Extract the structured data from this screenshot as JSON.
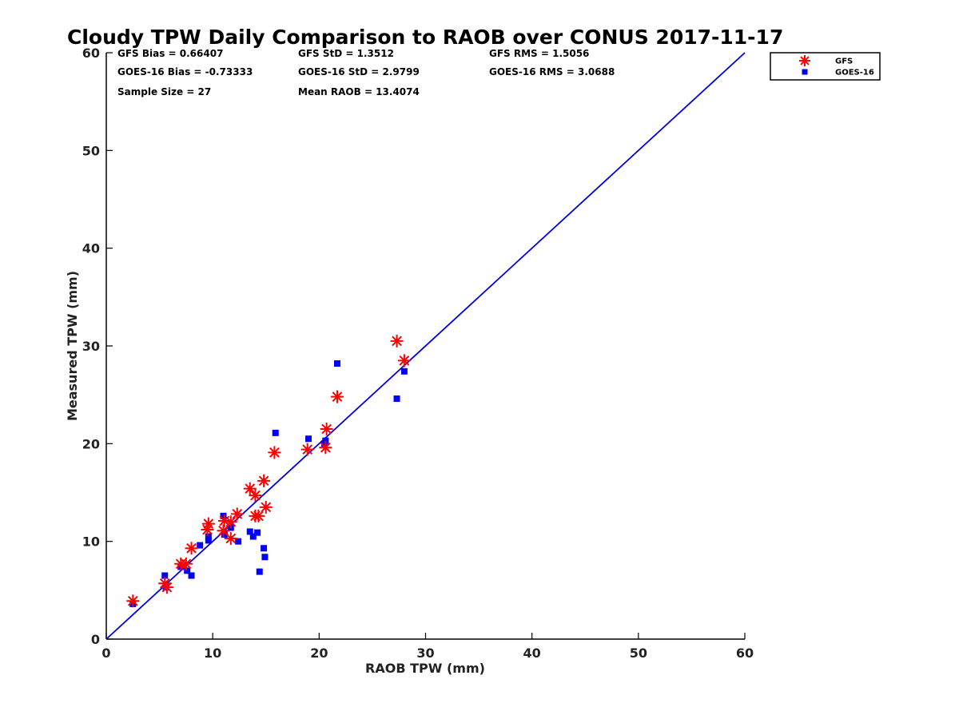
{
  "chart_data": {
    "type": "scatter",
    "title": "Cloudy TPW Daily Comparison to RAOB over CONUS 2017-11-17",
    "xlabel": "RAOB TPW (mm)",
    "ylabel": "Measured TPW (mm)",
    "xlim": [
      0,
      60
    ],
    "ylim": [
      0,
      60
    ],
    "xticks": [
      "0",
      "10",
      "20",
      "30",
      "40",
      "50",
      "60"
    ],
    "yticks": [
      "0",
      "10",
      "20",
      "30",
      "40",
      "50",
      "60"
    ],
    "grid": false,
    "legend_position": "top-right",
    "reference_line": {
      "x": [
        0,
        60
      ],
      "y": [
        0,
        60
      ],
      "color": "#0000dd"
    },
    "stats": {
      "gfs_bias": "GFS Bias = 0.66407",
      "goes_bias": "GOES-16 Bias = -0.73333",
      "sample_size": "Sample Size = 27",
      "gfs_std": "GFS StD = 1.3512",
      "goes_std": "GOES-16 StD = 2.9799",
      "mean_raob": "Mean RAOB = 13.4074",
      "gfs_rms": "GFS RMS = 1.5056",
      "goes_rms": "GOES-16 RMS = 3.0688"
    },
    "series": [
      {
        "name": "GFS",
        "marker": "asterisk",
        "color": "#ff0000",
        "points": [
          [
            2.5,
            3.9
          ],
          [
            5.5,
            5.7
          ],
          [
            5.7,
            5.3
          ],
          [
            7.0,
            7.7
          ],
          [
            7.5,
            7.7
          ],
          [
            8.0,
            9.3
          ],
          [
            9.5,
            11.2
          ],
          [
            9.6,
            11.8
          ],
          [
            11.0,
            11.1
          ],
          [
            11.1,
            12.1
          ],
          [
            11.7,
            12.0
          ],
          [
            11.7,
            10.3
          ],
          [
            12.3,
            12.8
          ],
          [
            13.5,
            15.4
          ],
          [
            14.0,
            14.7
          ],
          [
            14.0,
            12.6
          ],
          [
            14.3,
            12.6
          ],
          [
            14.8,
            16.2
          ],
          [
            15.0,
            13.5
          ],
          [
            15.8,
            19.1
          ],
          [
            18.9,
            19.4
          ],
          [
            20.6,
            19.6
          ],
          [
            20.7,
            21.5
          ],
          [
            21.7,
            24.8
          ],
          [
            27.3,
            30.5
          ],
          [
            28.0,
            28.5
          ]
        ]
      },
      {
        "name": "GOES-16",
        "marker": "square",
        "color": "#0000ff",
        "points": [
          [
            2.5,
            3.6
          ],
          [
            5.5,
            6.5
          ],
          [
            5.6,
            5.3
          ],
          [
            7.0,
            7.4
          ],
          [
            7.6,
            7.0
          ],
          [
            8.0,
            6.5
          ],
          [
            8.8,
            9.6
          ],
          [
            9.6,
            10.1
          ],
          [
            9.6,
            10.5
          ],
          [
            11.0,
            12.6
          ],
          [
            11.1,
            10.7
          ],
          [
            11.7,
            11.4
          ],
          [
            12.4,
            10.0
          ],
          [
            13.5,
            11.0
          ],
          [
            13.8,
            10.5
          ],
          [
            14.2,
            10.9
          ],
          [
            14.4,
            6.9
          ],
          [
            14.8,
            9.3
          ],
          [
            14.9,
            8.4
          ],
          [
            15.9,
            21.1
          ],
          [
            19.0,
            20.5
          ],
          [
            20.5,
            20.0
          ],
          [
            20.6,
            20.3
          ],
          [
            21.7,
            28.2
          ],
          [
            27.3,
            24.6
          ],
          [
            28.0,
            27.4
          ]
        ]
      }
    ]
  }
}
